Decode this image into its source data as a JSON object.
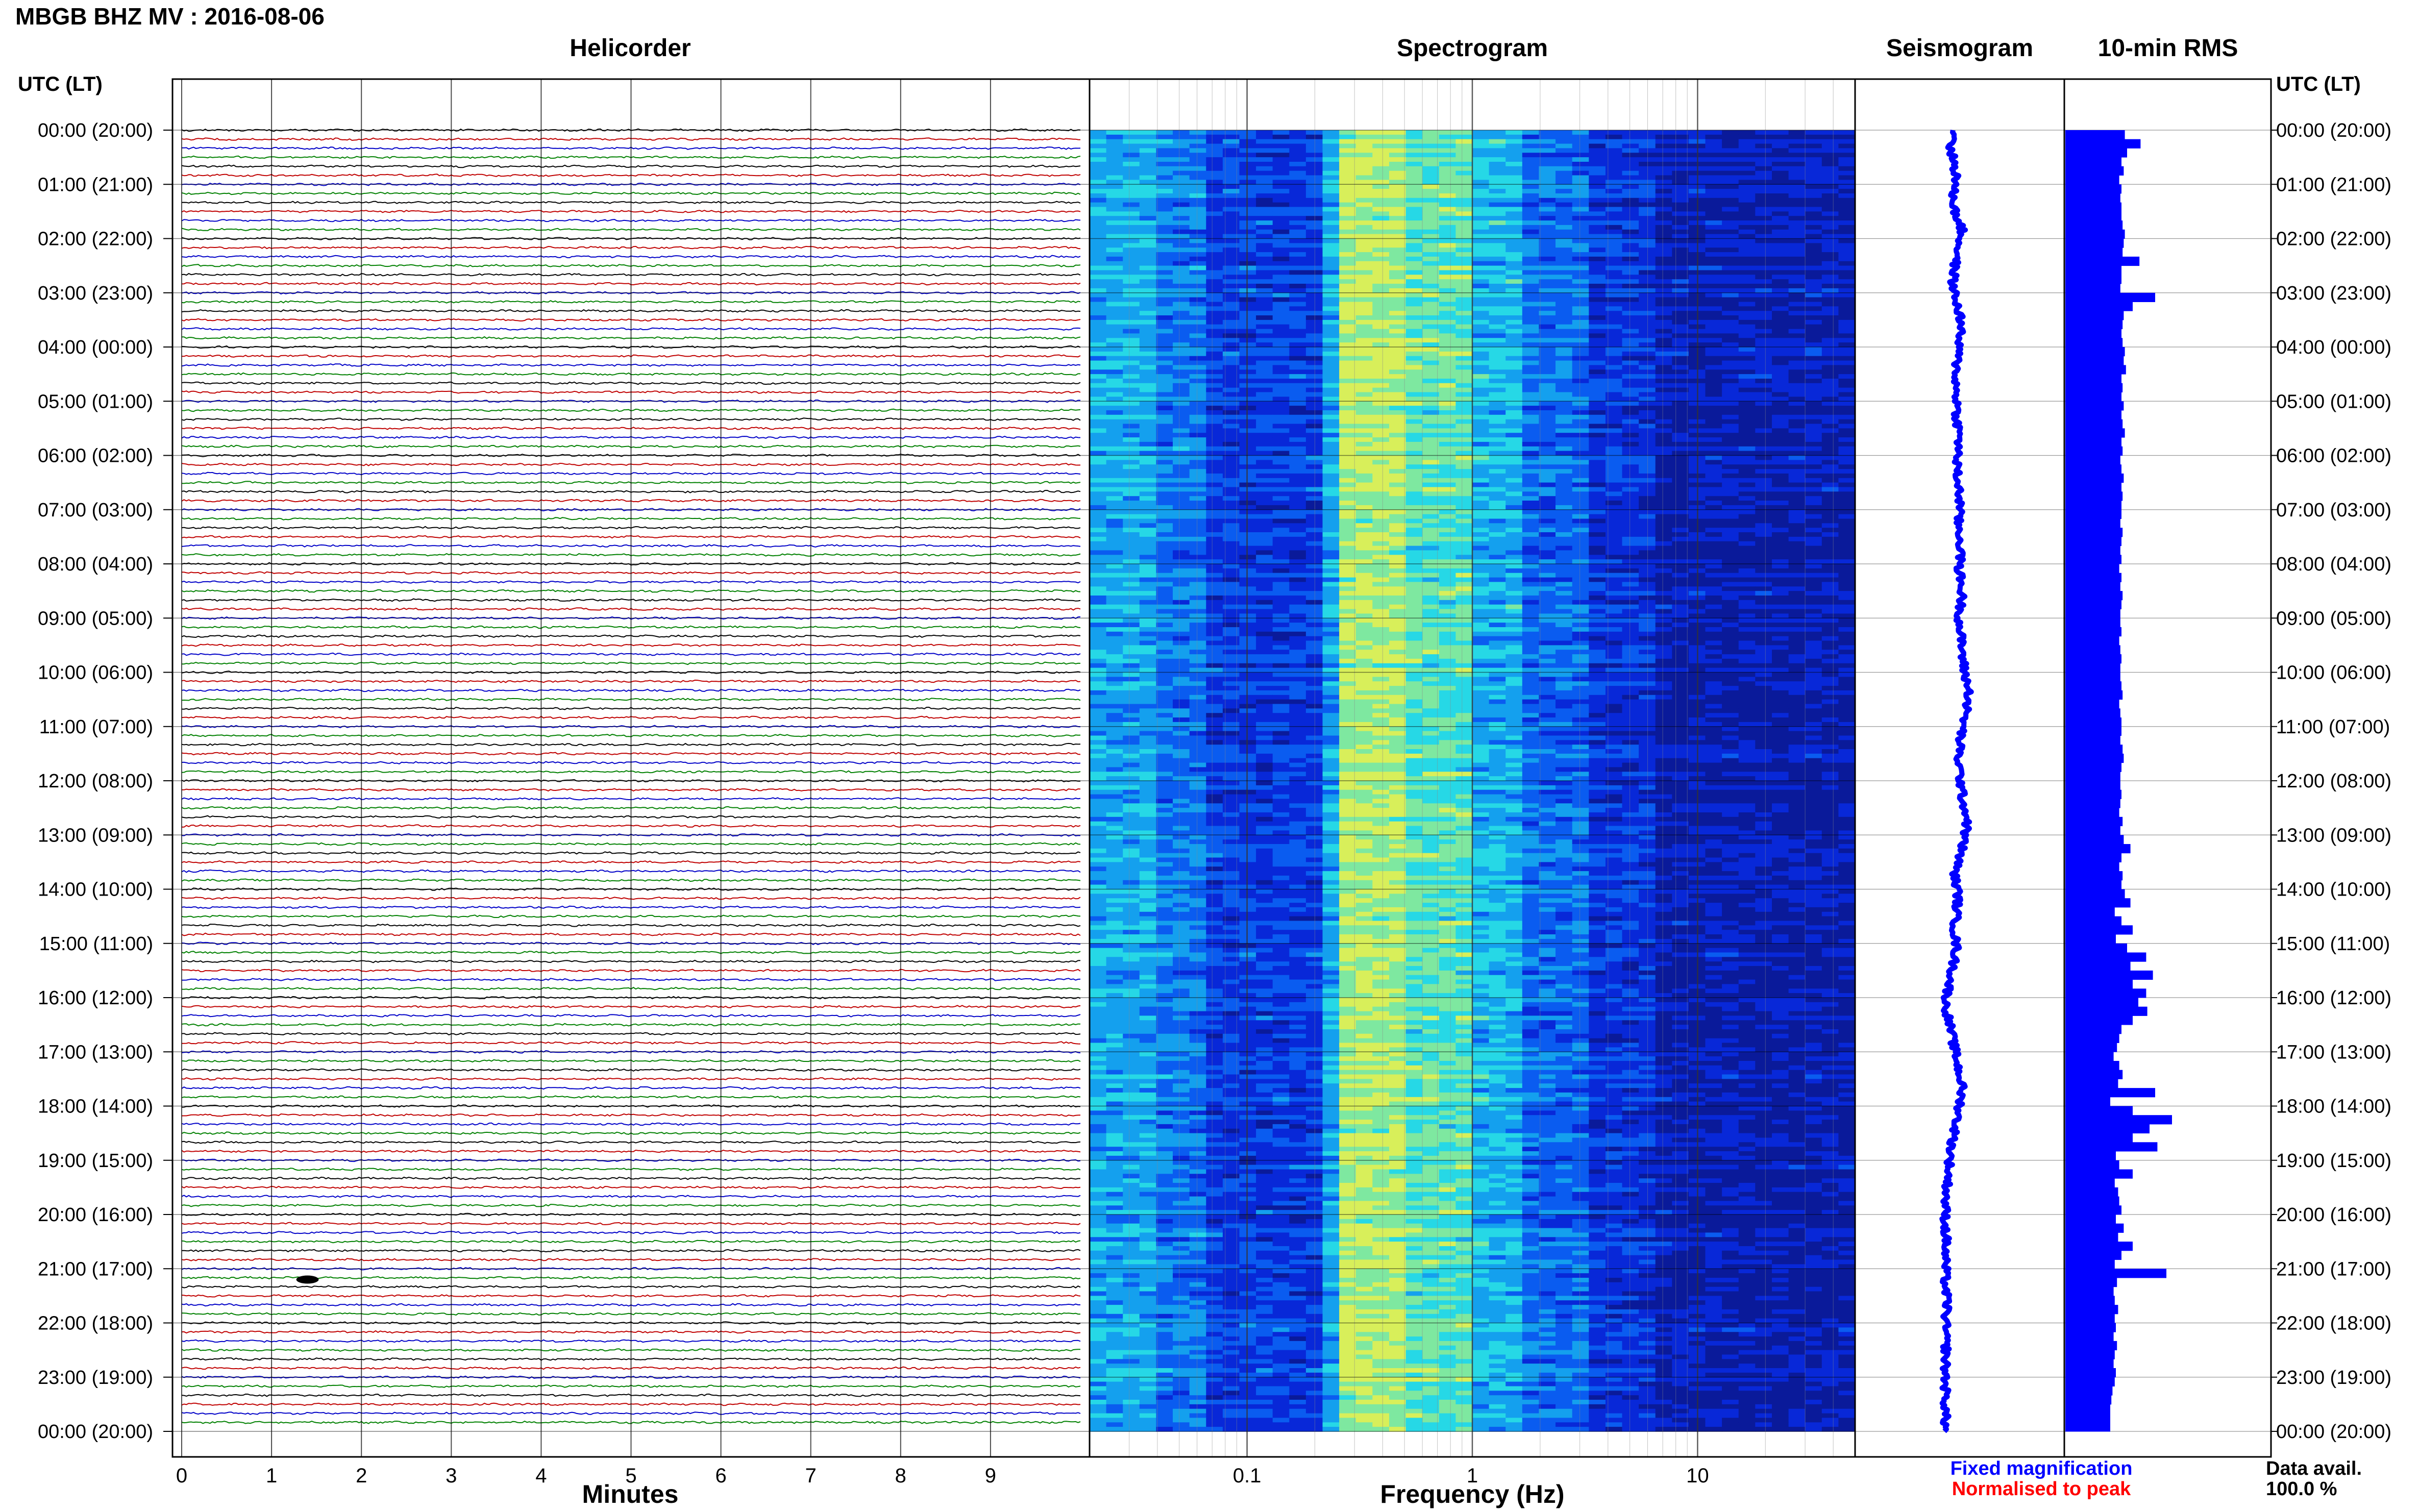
{
  "header": {
    "title": "MBGB BHZ MV : 2016-08-06",
    "utc_label_left": "UTC (LT)",
    "utc_label_right": "UTC (LT)"
  },
  "panels": {
    "helicorder_title": "Helicorder",
    "spectrogram_title": "Spectrogram",
    "seismogram_title": "Seismogram",
    "rms_title": "10-min RMS"
  },
  "time_labels": [
    "00:00 (20:00)",
    "01:00 (21:00)",
    "02:00 (22:00)",
    "03:00 (23:00)",
    "04:00 (00:00)",
    "05:00 (01:00)",
    "06:00 (02:00)",
    "07:00 (03:00)",
    "08:00 (04:00)",
    "09:00 (05:00)",
    "10:00 (06:00)",
    "11:00 (07:00)",
    "12:00 (08:00)",
    "13:00 (09:00)",
    "14:00 (10:00)",
    "15:00 (11:00)",
    "16:00 (12:00)",
    "17:00 (13:00)",
    "18:00 (14:00)",
    "19:00 (15:00)",
    "20:00 (16:00)",
    "21:00 (17:00)",
    "22:00 (18:00)",
    "23:00 (19:00)",
    "00:00 (20:00)"
  ],
  "helicorder": {
    "xlabel": "Minutes",
    "x_ticks": [
      "0",
      "1",
      "2",
      "3",
      "4",
      "5",
      "6",
      "7",
      "8",
      "9"
    ],
    "xlim": [
      0,
      10
    ],
    "lines_per_hour": 6,
    "trace_colors": [
      "#000000",
      "#c00000",
      "#0000c8",
      "#008000"
    ],
    "events": [
      {
        "hour": 21.2,
        "minute": 1.4,
        "label": ""
      }
    ]
  },
  "spectrogram": {
    "xlabel": "Frequency (Hz)",
    "x_ticks": [
      "0.1",
      "1",
      "10"
    ],
    "xlim_hz": [
      0.02,
      50
    ],
    "log_scale": true,
    "palette": [
      "#0a1a9a",
      "#0828d8",
      "#0a5cf0",
      "#14a0ee",
      "#26d8e6",
      "#7ee8a0",
      "#d8ef5a"
    ]
  },
  "seismogram": {
    "color": "#0000ff"
  },
  "chart_data": {
    "type": "bar",
    "description_type": "10-min RMS horizontal bars per 10-min interval (relative)",
    "categories_hours": [
      0,
      1,
      2,
      3,
      4,
      5,
      6,
      7,
      8,
      9,
      10,
      11,
      12,
      13,
      14,
      15,
      16,
      17,
      18,
      19,
      20,
      21,
      22,
      23
    ],
    "rms_values": [
      0.53,
      0.67,
      0.55,
      0.5,
      0.52,
      0.48,
      0.5,
      0.49,
      0.5,
      0.5,
      0.51,
      0.53,
      0.52,
      0.51,
      0.66,
      0.5,
      0.5,
      0.49,
      0.8,
      0.6,
      0.52,
      0.51,
      0.5,
      0.51,
      0.53,
      0.52,
      0.54,
      0.5,
      0.51,
      0.5,
      0.52,
      0.5,
      0.51,
      0.53,
      0.5,
      0.51,
      0.49,
      0.5,
      0.52,
      0.5,
      0.51,
      0.5,
      0.5,
      0.49,
      0.51,
      0.5,
      0.49,
      0.5,
      0.48,
      0.5,
      0.49,
      0.51,
      0.5,
      0.49,
      0.49,
      0.5,
      0.48,
      0.49,
      0.5,
      0.49,
      0.49,
      0.5,
      0.51,
      0.48,
      0.49,
      0.5,
      0.5,
      0.49,
      0.51,
      0.52,
      0.5,
      0.49,
      0.49,
      0.5,
      0.49,
      0.48,
      0.51,
      0.49,
      0.52,
      0.58,
      0.5,
      0.48,
      0.51,
      0.5,
      0.53,
      0.58,
      0.44,
      0.5,
      0.6,
      0.45,
      0.55,
      0.72,
      0.58,
      0.78,
      0.6,
      0.72,
      0.65,
      0.73,
      0.6,
      0.5,
      0.48,
      0.46,
      0.43,
      0.48,
      0.51,
      0.47,
      0.8,
      0.4,
      0.6,
      0.95,
      0.75,
      0.6,
      0.82,
      0.45,
      0.48,
      0.6,
      0.44,
      0.47,
      0.48,
      0.5,
      0.45,
      0.52,
      0.47,
      0.6,
      0.5,
      0.44,
      0.9,
      0.46,
      0.43,
      0.44,
      0.47,
      0.44,
      0.45,
      0.43,
      0.46,
      0.44,
      0.43,
      0.45,
      0.44,
      0.42,
      0.41,
      0.4,
      0.4,
      0.4
    ],
    "seismogram_offsets": [
      0.0,
      0.0,
      -0.05,
      -0.02,
      0.0,
      0.02,
      0.0,
      -0.02,
      0.0,
      0.0,
      0.05,
      0.08,
      0.06,
      0.04,
      0.02,
      0.0,
      -0.01,
      -0.02,
      0.0,
      0.02,
      0.05,
      0.07,
      0.06,
      0.05,
      0.04,
      0.03,
      0.02,
      0.02,
      0.01,
      0.02,
      0.03,
      0.02,
      0.03,
      0.04,
      0.05,
      0.04,
      0.03,
      0.02,
      0.03,
      0.04,
      0.05,
      0.06,
      0.05,
      0.04,
      0.05,
      0.06,
      0.07,
      0.06,
      0.05,
      0.06,
      0.07,
      0.08,
      0.07,
      0.06,
      0.05,
      0.06,
      0.07,
      0.08,
      0.09,
      0.1,
      0.12,
      0.14,
      0.16,
      0.14,
      0.12,
      0.1,
      0.08,
      0.06,
      0.05,
      0.04,
      0.05,
      0.06,
      0.07,
      0.08,
      0.1,
      0.12,
      0.14,
      0.12,
      0.1,
      0.08,
      0.05,
      0.02,
      0.0,
      0.02,
      0.04,
      0.03,
      0.02,
      0.01,
      0.0,
      0.01,
      0.02,
      0.0,
      -0.02,
      -0.04,
      -0.06,
      -0.08,
      -0.1,
      -0.08,
      -0.06,
      -0.04,
      -0.02,
      0.0,
      0.02,
      0.04,
      0.06,
      0.08,
      0.07,
      0.06,
      0.04,
      0.02,
      0.0,
      -0.02,
      -0.04,
      -0.05,
      -0.06,
      -0.07,
      -0.08,
      -0.09,
      -0.1,
      -0.1,
      -0.1,
      -0.1,
      -0.09,
      -0.1,
      -0.1,
      -0.1,
      -0.1,
      -0.1,
      -0.09,
      -0.08,
      -0.09,
      -0.1,
      -0.1,
      -0.1,
      -0.09,
      -0.1,
      -0.1,
      -0.1,
      -0.1,
      -0.1,
      -0.1,
      -0.1,
      -0.1,
      -0.1
    ]
  },
  "legend": {
    "fixed": "Fixed magnification",
    "fixed_color": "#0000ff",
    "normalised": "Normalised to peak",
    "normalised_color": "#ff0000",
    "data_avail_label": "Data avail.",
    "data_avail_value": "100.0 %"
  }
}
